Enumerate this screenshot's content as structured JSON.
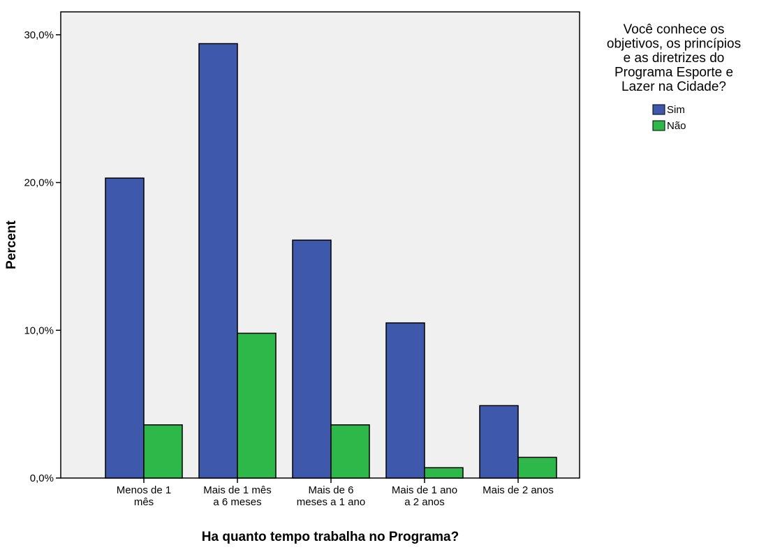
{
  "chart_data": {
    "type": "bar",
    "categories": [
      [
        "Menos de 1",
        "mês"
      ],
      [
        "Mais de 1 mês",
        "a 6 meses"
      ],
      [
        "Mais de 6",
        "meses a 1 ano"
      ],
      [
        "Mais de 1 ano",
        "a 2 anos"
      ],
      [
        "Mais de 2 anos"
      ]
    ],
    "series": [
      {
        "name": "Sim",
        "color": "#3e58ac",
        "values": [
          20.3,
          29.4,
          16.1,
          10.5,
          4.9
        ]
      },
      {
        "name": "Não",
        "color": "#2fb84a",
        "values": [
          3.6,
          9.8,
          3.6,
          0.7,
          1.4
        ]
      }
    ],
    "ylim": [
      0,
      31.55
    ],
    "yticks": [
      {
        "value": 0,
        "label": "0,0%"
      },
      {
        "value": 10,
        "label": "10,0%"
      },
      {
        "value": 20,
        "label": "20,0%"
      },
      {
        "value": 30,
        "label": "30,0%"
      }
    ],
    "y_label": "Percent",
    "x_label": "Ha quanto tempo trabalha no Programa?",
    "legend_title": [
      "Você conhece os",
      "objetivos, os princípios",
      "e as diretrizes do",
      "Programa Esporte e",
      "Lazer na Cidade?"
    ],
    "legend_position": "right"
  }
}
